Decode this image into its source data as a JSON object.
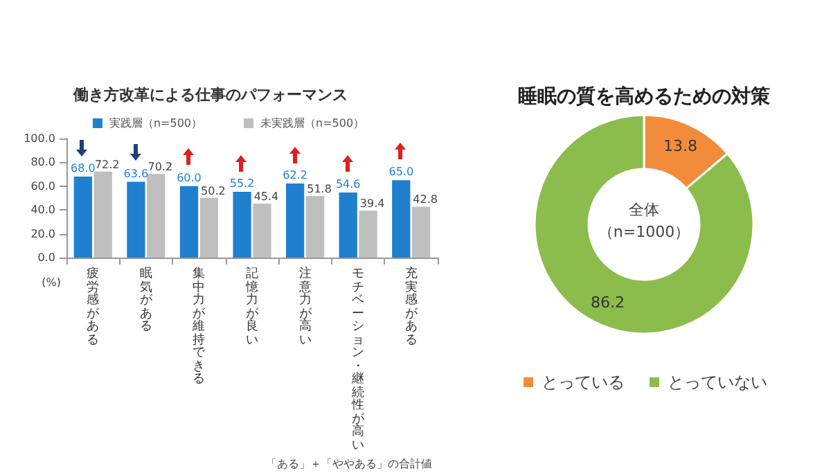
{
  "chart_data": [
    {
      "type": "bar",
      "title": "働き方改革による仕事のパフォーマンス",
      "categories": [
        "疲労感がある",
        "眠気がある",
        "集中力が維持できる",
        "記憶力が良い",
        "注意力が高い",
        "モチベーション・継続性が高い",
        "充実感がある"
      ],
      "series": [
        {
          "name": "実践層（n=500）",
          "color": "#1f80d0",
          "values": [
            68.0,
            63.6,
            60.0,
            55.2,
            62.2,
            54.6,
            65.0
          ],
          "value_labels": [
            "68.0",
            "63.6",
            "60.0",
            "55.2",
            "62.2",
            "54.6",
            "65.0"
          ]
        },
        {
          "name": "未実践層（n=500）",
          "color": "#bfbfbf",
          "values": [
            72.2,
            70.2,
            50.2,
            45.4,
            51.8,
            39.4,
            42.8
          ],
          "value_labels": [
            "72.2",
            "70.2",
            "50.2",
            "45.4",
            "51.8",
            "39.4",
            "42.8"
          ]
        }
      ],
      "ylim": [
        0,
        100
      ],
      "yticks": [
        {
          "value": 0,
          "label": "0.0"
        },
        {
          "value": 20,
          "label": "20.0"
        },
        {
          "value": 40,
          "label": "40.0"
        },
        {
          "value": 60,
          "label": "60.0"
        },
        {
          "value": 80,
          "label": "80.0"
        },
        {
          "value": 100,
          "label": "100.0"
        }
      ],
      "ylabel": "(%)",
      "legend": "top",
      "annotations": [
        "「ある」＋「ややある」の合計値"
      ]
    },
    {
      "type": "donut",
      "title": "睡眠の質を高めるための対策",
      "categories": [
        "とっている",
        "とっていない"
      ],
      "values": [
        13.8,
        86.2
      ],
      "colors": [
        "#f28c3a",
        "#8cbc4c"
      ],
      "data_labels": true,
      "legend": "bottom",
      "annotations": [
        "全体",
        "（n=1000）"
      ]
    }
  ]
}
